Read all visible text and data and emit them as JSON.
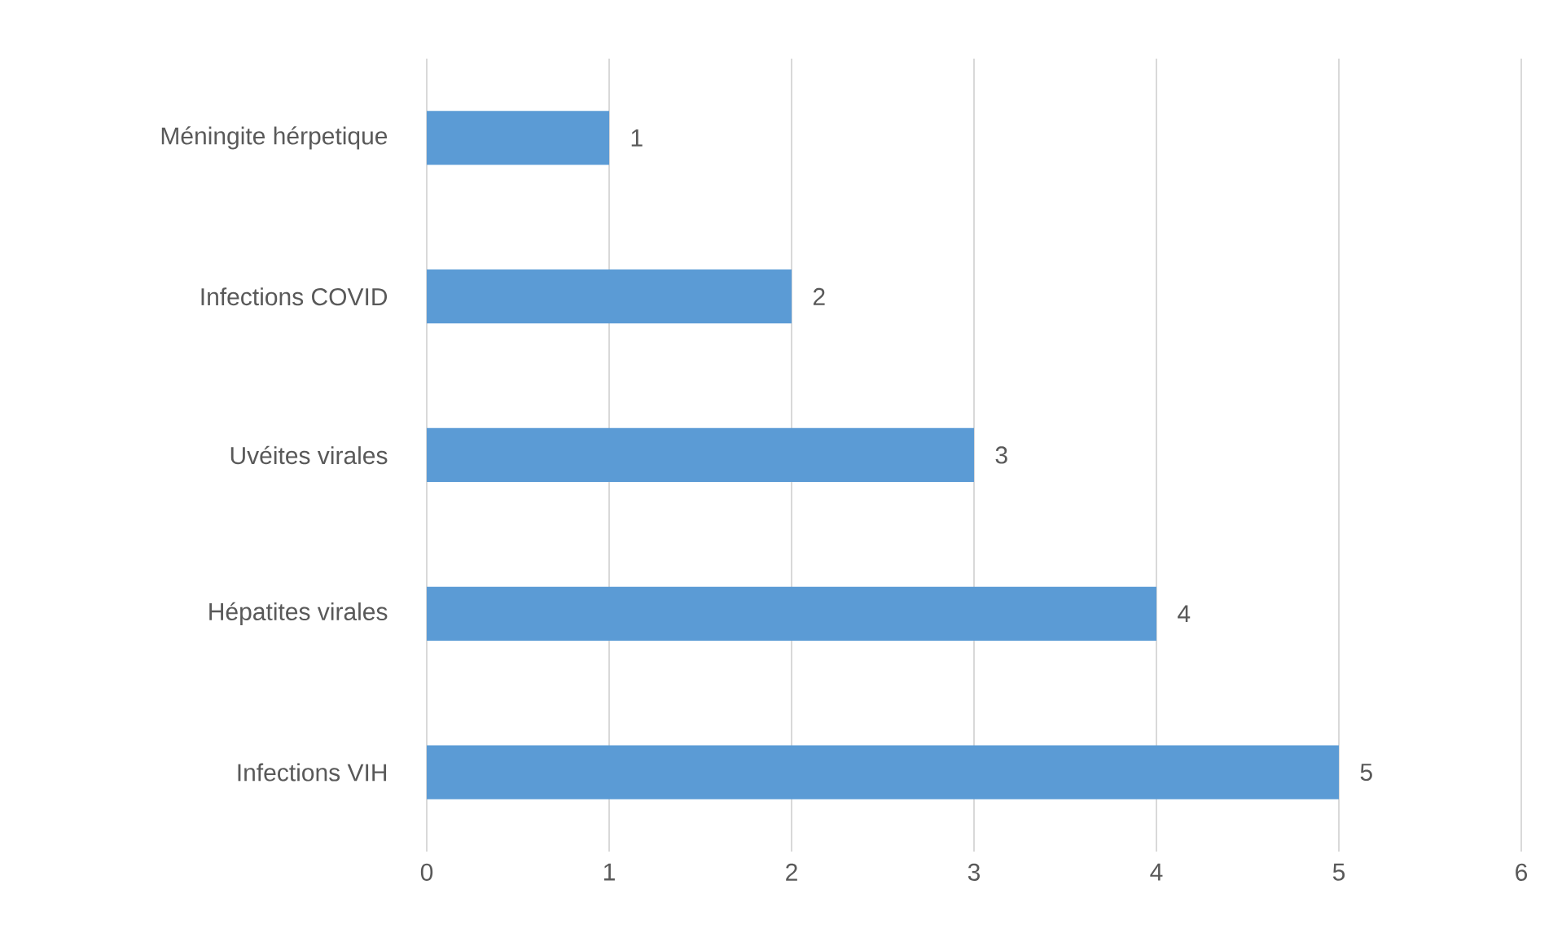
{
  "chart_data": {
    "type": "bar",
    "orientation": "horizontal",
    "categories": [
      "Méningite hérpetique",
      "Infections COVID",
      "Uvéites virales",
      "Hépatites virales",
      "Infections VIH"
    ],
    "values": [
      1,
      2,
      3,
      4,
      5
    ],
    "color": "#5b9bd5",
    "xlim": [
      0,
      6
    ],
    "xticks": [
      0,
      1,
      2,
      3,
      4,
      5,
      6
    ],
    "grid": "x",
    "data_labels": true
  }
}
